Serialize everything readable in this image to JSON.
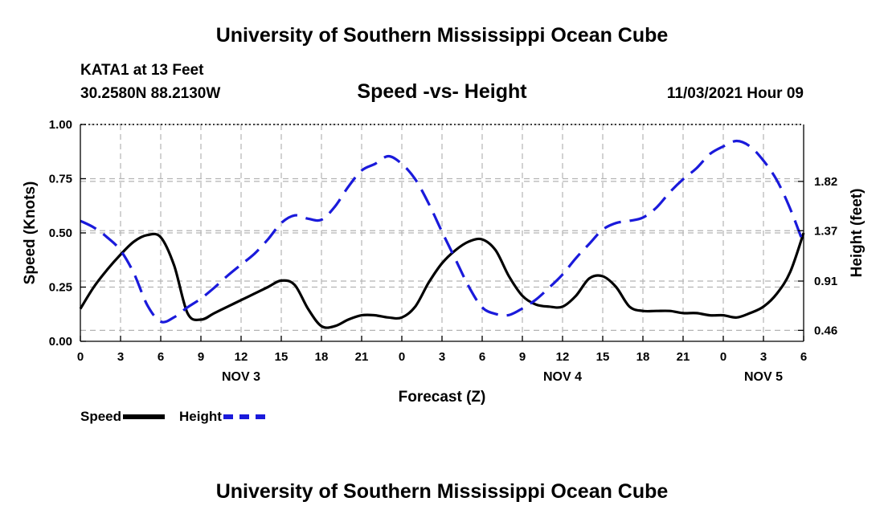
{
  "header": {
    "title": "University of Southern Mississippi Ocean Cube",
    "station": "KATA1 at 13 Feet",
    "coordinates": "30.2580N  88.2130W",
    "datetime": "11/03/2021 Hour 09"
  },
  "footer": {
    "title": "University of Southern Mississippi Ocean Cube"
  },
  "legend": {
    "speed_label": "Speed",
    "height_label": "Height"
  },
  "colors": {
    "speed": "#000000",
    "height": "#1a1adb",
    "grid": "#b4b4b4"
  },
  "chart_data": {
    "type": "line",
    "title": "Speed -vs- Height",
    "xlabel": "Forecast (Z)",
    "ylabel": "Speed (Knots)",
    "y2label": "Height (feet)",
    "xlim": [
      0,
      54
    ],
    "ylim": [
      0,
      1.0
    ],
    "y2lim": [
      0.36,
      2.34
    ],
    "x_ticks": [
      0,
      3,
      6,
      9,
      12,
      15,
      18,
      21,
      24,
      27,
      30,
      33,
      36,
      39,
      42,
      45,
      48,
      51,
      54
    ],
    "x_tick_labels": [
      "0",
      "3",
      "6",
      "9",
      "12",
      "15",
      "18",
      "21",
      "0",
      "3",
      "6",
      "9",
      "12",
      "15",
      "18",
      "21",
      "0",
      "3",
      "6"
    ],
    "day_labels": [
      {
        "hour": 12,
        "label": "NOV 3"
      },
      {
        "hour": 36,
        "label": "NOV 4"
      },
      {
        "hour": 51,
        "label": "NOV 5"
      }
    ],
    "y_ticks": [
      0.0,
      0.25,
      0.5,
      0.75,
      1.0
    ],
    "y_tick_labels": [
      "0.00",
      "0.25",
      "0.50",
      "0.75",
      "1.00"
    ],
    "y2_ticks": [
      0.46,
      0.91,
      1.37,
      1.82
    ],
    "y2_tick_labels": [
      "0.46",
      "0.91",
      "1.37",
      "1.82"
    ],
    "grid": true,
    "series": [
      {
        "name": "Speed",
        "axis": "left",
        "style": "solid",
        "x": [
          0,
          1,
          2,
          3,
          4,
          5,
          6,
          7,
          8,
          9,
          10,
          11,
          12,
          13,
          14,
          15,
          16,
          17,
          18,
          19,
          20,
          21,
          22,
          23,
          24,
          25,
          26,
          27,
          28,
          29,
          30,
          31,
          32,
          33,
          34,
          35,
          36,
          37,
          38,
          39,
          40,
          41,
          42,
          43,
          44,
          45,
          46,
          47,
          48,
          49,
          50,
          51,
          52,
          53,
          54
        ],
        "values": [
          0.15,
          0.25,
          0.33,
          0.4,
          0.46,
          0.49,
          0.48,
          0.35,
          0.13,
          0.1,
          0.13,
          0.16,
          0.19,
          0.22,
          0.25,
          0.28,
          0.26,
          0.15,
          0.07,
          0.07,
          0.1,
          0.12,
          0.12,
          0.11,
          0.11,
          0.16,
          0.27,
          0.36,
          0.42,
          0.46,
          0.47,
          0.42,
          0.3,
          0.21,
          0.17,
          0.16,
          0.16,
          0.21,
          0.29,
          0.3,
          0.25,
          0.16,
          0.14,
          0.14,
          0.14,
          0.13,
          0.13,
          0.12,
          0.12,
          0.11,
          0.13,
          0.16,
          0.22,
          0.32,
          0.5
        ]
      },
      {
        "name": "Height",
        "axis": "right",
        "style": "dashed",
        "x": [
          0,
          1,
          2,
          3,
          4,
          5,
          6,
          7,
          8,
          9,
          10,
          11,
          12,
          13,
          14,
          15,
          16,
          17,
          18,
          19,
          20,
          21,
          22,
          23,
          24,
          25,
          26,
          27,
          28,
          29,
          30,
          31,
          32,
          33,
          34,
          35,
          36,
          37,
          38,
          39,
          40,
          41,
          42,
          43,
          44,
          45,
          46,
          47,
          48,
          49,
          50,
          51,
          52,
          53,
          54
        ],
        "values": [
          1.46,
          1.4,
          1.31,
          1.19,
          0.98,
          0.69,
          0.54,
          0.58,
          0.67,
          0.75,
          0.85,
          0.96,
          1.06,
          1.16,
          1.29,
          1.44,
          1.51,
          1.48,
          1.47,
          1.59,
          1.77,
          1.92,
          1.98,
          2.05,
          1.98,
          1.84,
          1.62,
          1.36,
          1.11,
          0.86,
          0.67,
          0.61,
          0.6,
          0.66,
          0.74,
          0.85,
          0.97,
          1.12,
          1.25,
          1.38,
          1.44,
          1.46,
          1.49,
          1.58,
          1.72,
          1.84,
          1.94,
          2.07,
          2.14,
          2.19,
          2.14,
          2.01,
          1.83,
          1.57,
          1.25
        ]
      }
    ]
  }
}
